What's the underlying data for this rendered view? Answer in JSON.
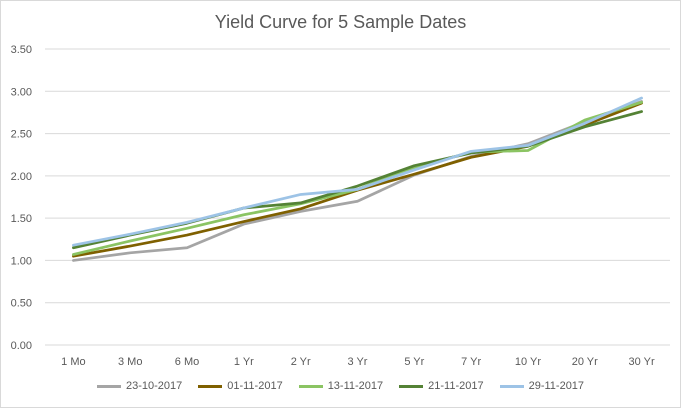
{
  "chart_data": {
    "type": "line",
    "title": "Yield Curve for 5 Sample Dates",
    "xlabel": "",
    "ylabel": "",
    "categories": [
      "1 Mo",
      "3 Mo",
      "6 Mo",
      "1 Yr",
      "2 Yr",
      "3 Yr",
      "5 Yr",
      "7 Yr",
      "10 Yr",
      "20 Yr",
      "30 Yr"
    ],
    "ylim": [
      0,
      3.5
    ],
    "yticks": [
      "0.00",
      "0.50",
      "1.00",
      "1.50",
      "2.00",
      "2.50",
      "3.00",
      "3.50"
    ],
    "grid": true,
    "legend_position": "bottom",
    "series": [
      {
        "name": "23-10-2017",
        "color": "#a5a5a5",
        "values": [
          1.0,
          1.09,
          1.15,
          1.43,
          1.58,
          1.7,
          2.01,
          2.23,
          2.38,
          2.64,
          2.88
        ]
      },
      {
        "name": "01-11-2017",
        "color": "#7f6000",
        "values": [
          1.05,
          1.17,
          1.3,
          1.46,
          1.61,
          1.83,
          2.02,
          2.22,
          2.35,
          2.6,
          2.86
        ]
      },
      {
        "name": "13-11-2017",
        "color": "#8bc463",
        "values": [
          1.07,
          1.23,
          1.38,
          1.54,
          1.67,
          1.84,
          2.1,
          2.28,
          2.3,
          2.66,
          2.87
        ]
      },
      {
        "name": "21-11-2017",
        "color": "#548235",
        "values": [
          1.15,
          1.3,
          1.44,
          1.62,
          1.68,
          1.88,
          2.12,
          2.27,
          2.35,
          2.58,
          2.76
        ]
      },
      {
        "name": "29-11-2017",
        "color": "#9dc3e6",
        "values": [
          1.18,
          1.31,
          1.45,
          1.62,
          1.78,
          1.84,
          2.07,
          2.29,
          2.36,
          2.62,
          2.92
        ]
      }
    ]
  }
}
